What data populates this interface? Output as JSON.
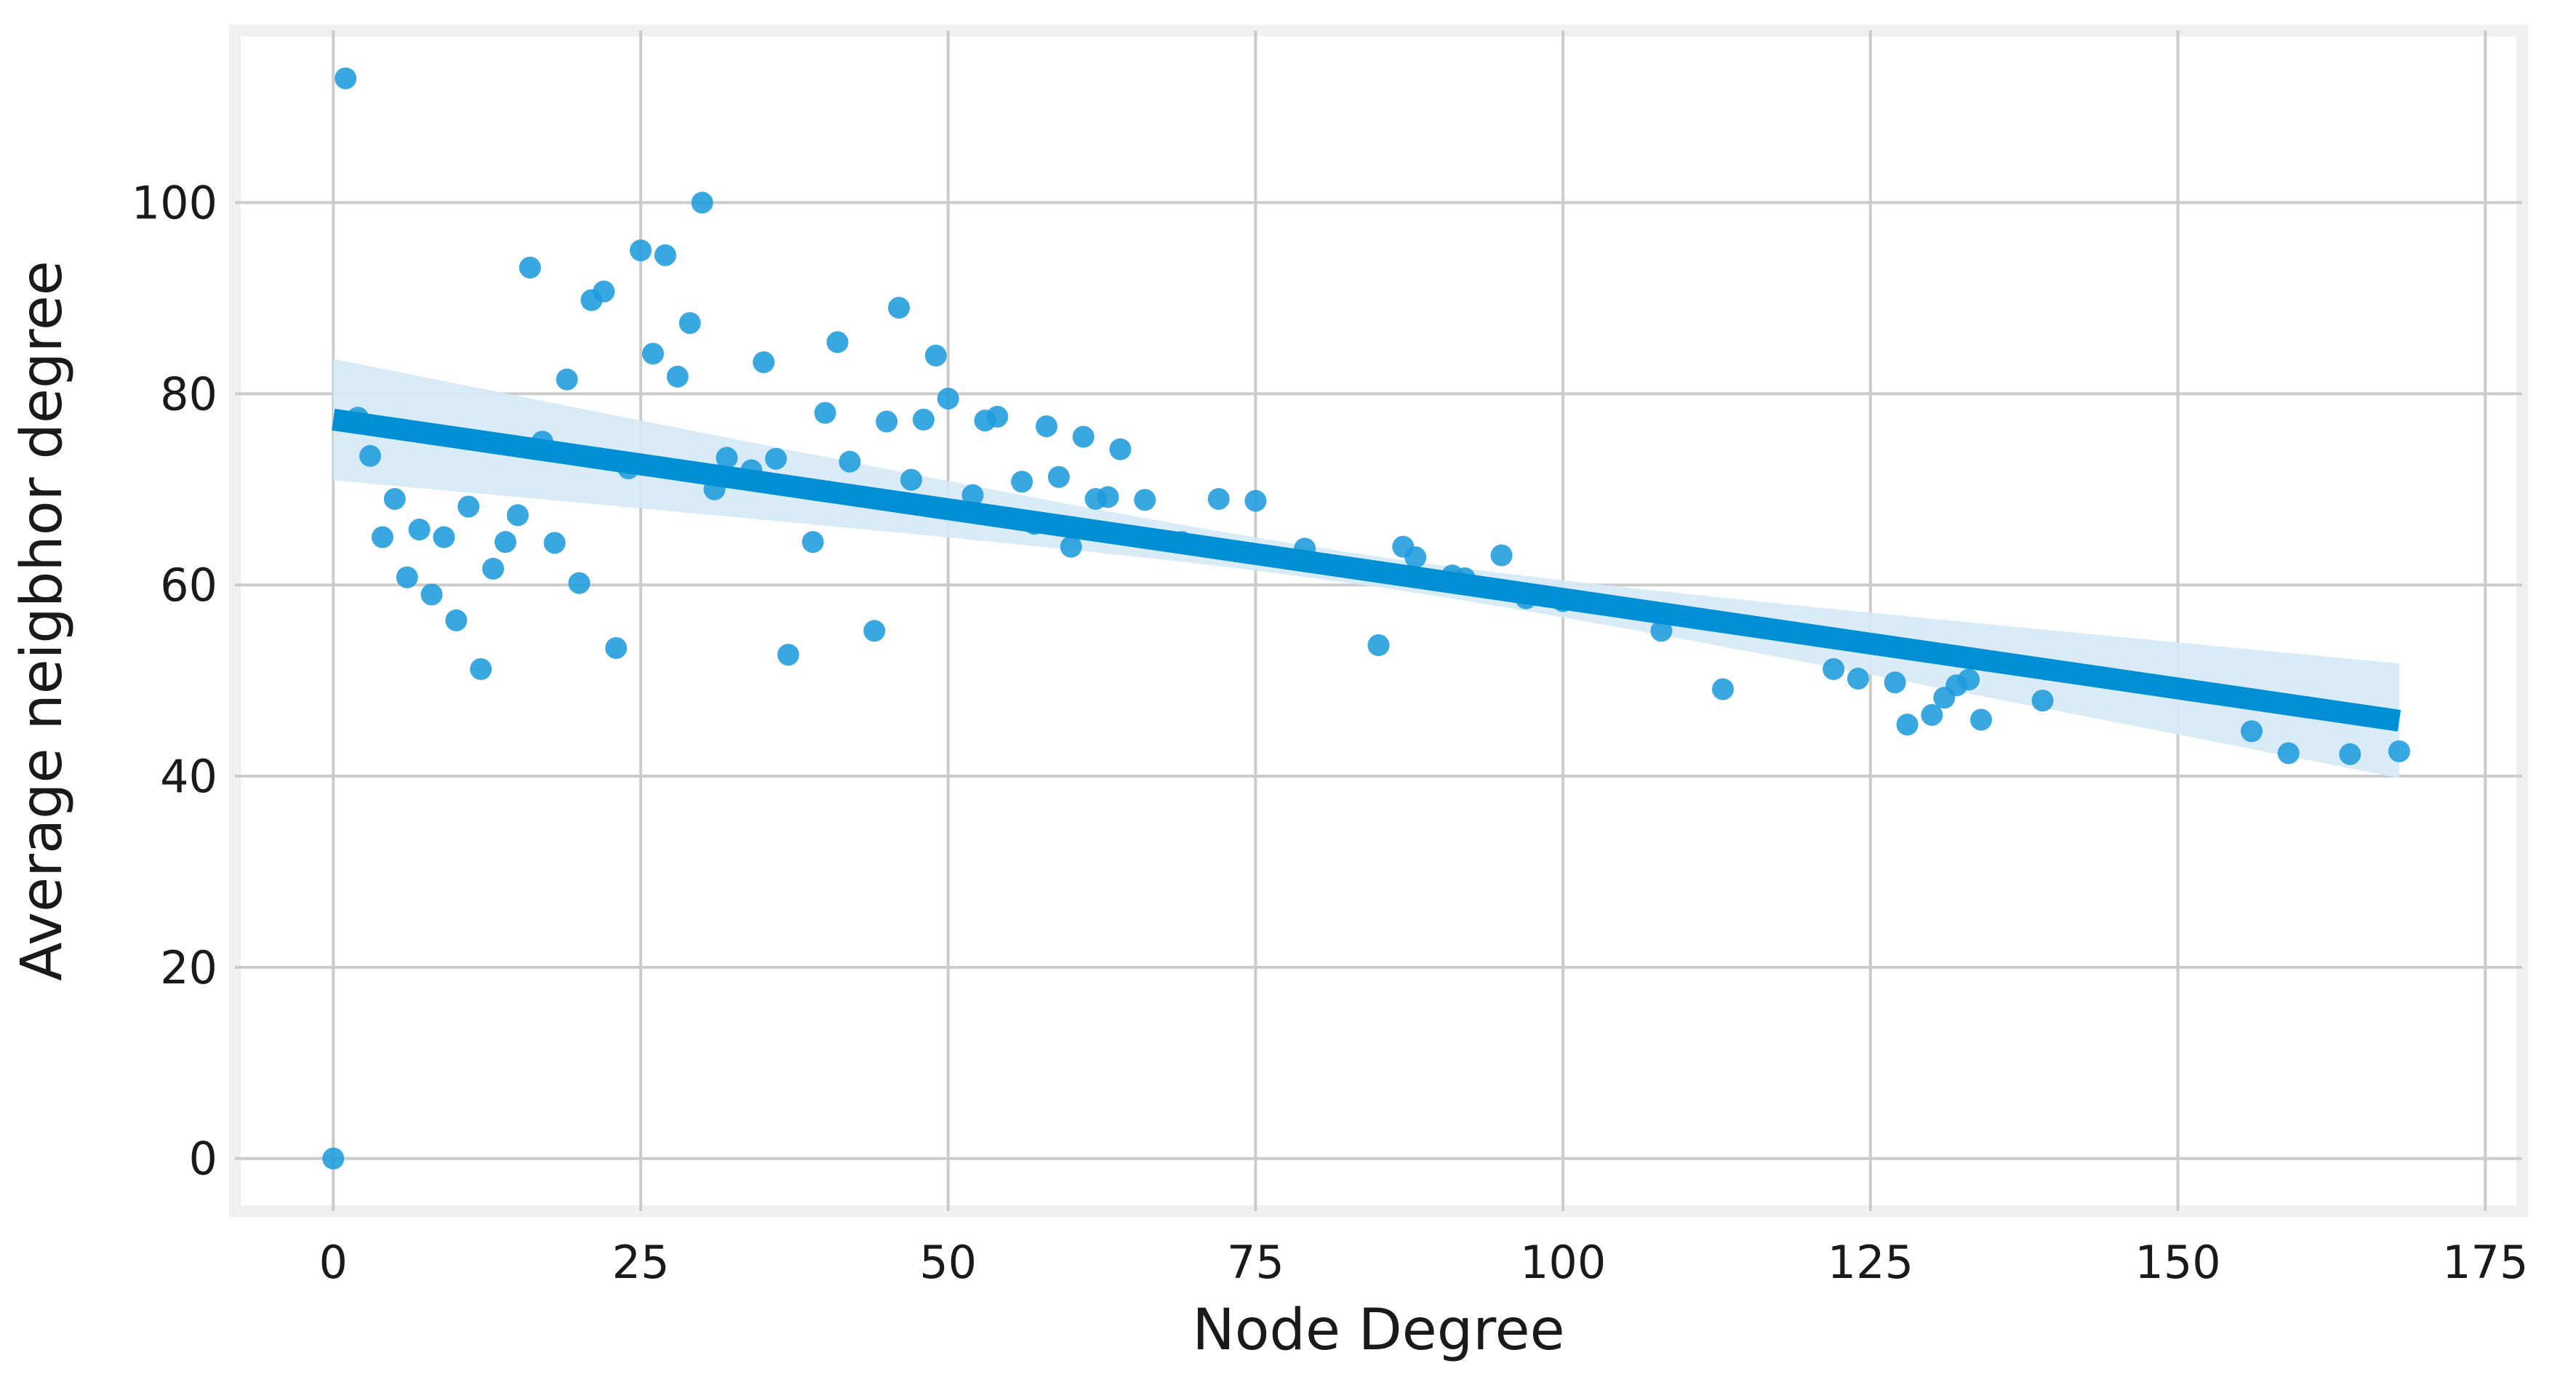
{
  "chart_data": {
    "type": "scatter",
    "title": "",
    "xlabel": "Node Degree",
    "ylabel": "Average neigbhor degree",
    "xlim": [
      -8,
      178
    ],
    "ylim": [
      -5.5,
      118
    ],
    "x_ticks": [
      0,
      25,
      50,
      75,
      100,
      125,
      150,
      175
    ],
    "y_ticks": [
      0,
      20,
      40,
      60,
      80,
      100
    ],
    "x_tick_labels": [
      "0",
      "25",
      "50",
      "75",
      "100",
      "125",
      "150",
      "175"
    ],
    "y_tick_labels": [
      "0",
      "20",
      "40",
      "60",
      "80",
      "100"
    ],
    "grid": true,
    "colors": {
      "points": "#1e9bdc",
      "regression_line": "#008fd5",
      "confidence_band": "#d4e9f6",
      "grid": "#cbcbcb",
      "frame": "#f0f0f0"
    },
    "regression": {
      "x_range": [
        0,
        168
      ],
      "intercept": 77.3,
      "slope": -0.1875,
      "ci_upper_at_start": 83.5,
      "ci_lower_at_start": 70.8,
      "ci_upper_at_end": 52.2,
      "ci_lower_at_end": 40.2,
      "ci_min_half_width": 1.6
    },
    "series": [
      {
        "points": [
          [
            0,
            0
          ],
          [
            1,
            113
          ],
          [
            2,
            77.5
          ],
          [
            3,
            73.5
          ],
          [
            4,
            65
          ],
          [
            5,
            69
          ],
          [
            6,
            60.8
          ],
          [
            7,
            65.8
          ],
          [
            8,
            59
          ],
          [
            9,
            65
          ],
          [
            10,
            56.3
          ],
          [
            11,
            68.2
          ],
          [
            12,
            51.2
          ],
          [
            13,
            61.7
          ],
          [
            14,
            64.5
          ],
          [
            15,
            67.3
          ],
          [
            16,
            93.2
          ],
          [
            17,
            75
          ],
          [
            18,
            64.4
          ],
          [
            19,
            81.5
          ],
          [
            20,
            60.2
          ],
          [
            21,
            89.8
          ],
          [
            22,
            90.7
          ],
          [
            23,
            53.4
          ],
          [
            24,
            72.2
          ],
          [
            25,
            95
          ],
          [
            26,
            84.2
          ],
          [
            27,
            94.5
          ],
          [
            28,
            81.8
          ],
          [
            29,
            87.4
          ],
          [
            30,
            100
          ],
          [
            31,
            70
          ],
          [
            32,
            73.3
          ],
          [
            34,
            72
          ],
          [
            35,
            83.3
          ],
          [
            36,
            73.2
          ],
          [
            37,
            52.7
          ],
          [
            39,
            64.5
          ],
          [
            40,
            78
          ],
          [
            41,
            85.4
          ],
          [
            42,
            72.9
          ],
          [
            44,
            55.2
          ],
          [
            45,
            77.1
          ],
          [
            46,
            89
          ],
          [
            47,
            71
          ],
          [
            48,
            77.3
          ],
          [
            49,
            84
          ],
          [
            50,
            79.5
          ],
          [
            52,
            69.4
          ],
          [
            53,
            77.2
          ],
          [
            54,
            77.6
          ],
          [
            56,
            70.8
          ],
          [
            57,
            66.4
          ],
          [
            58,
            76.6
          ],
          [
            59,
            71.3
          ],
          [
            60,
            64
          ],
          [
            61,
            75.5
          ],
          [
            62,
            69
          ],
          [
            63,
            69.2
          ],
          [
            64,
            74.2
          ],
          [
            66,
            68.9
          ],
          [
            69,
            64.5
          ],
          [
            72,
            69
          ],
          [
            75,
            68.8
          ],
          [
            79,
            63.8
          ],
          [
            85,
            53.7
          ],
          [
            87,
            64
          ],
          [
            88,
            62.9
          ],
          [
            91,
            61
          ],
          [
            92,
            60.7
          ],
          [
            95,
            63.1
          ],
          [
            97,
            58.6
          ],
          [
            100,
            58.3
          ],
          [
            108,
            55.2
          ],
          [
            113,
            49.1
          ],
          [
            122,
            51.2
          ],
          [
            124,
            50.2
          ],
          [
            127,
            49.8
          ],
          [
            128,
            45.4
          ],
          [
            130,
            46.4
          ],
          [
            131,
            48.2
          ],
          [
            132,
            49.5
          ],
          [
            133,
            50.1
          ],
          [
            134,
            45.9
          ],
          [
            139,
            47.9
          ],
          [
            156,
            44.7
          ],
          [
            159,
            42.4
          ],
          [
            164,
            42.3
          ],
          [
            168,
            42.6
          ]
        ]
      }
    ]
  }
}
